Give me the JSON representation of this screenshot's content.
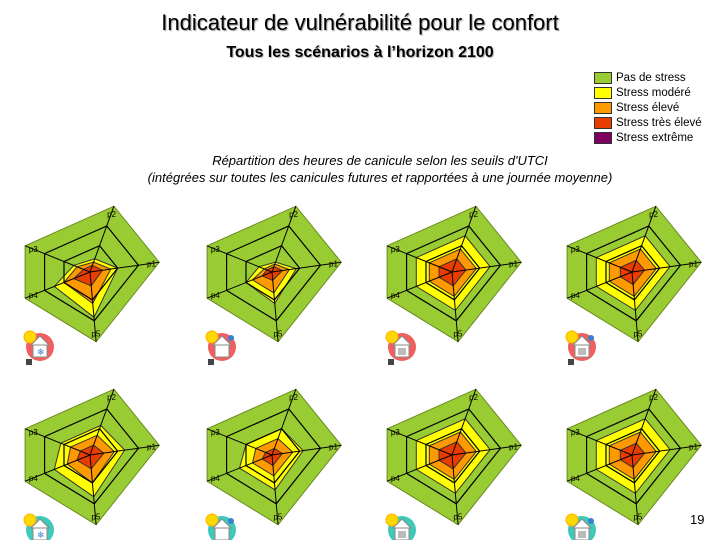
{
  "title": "Indicateur de vulnérabilité pour le confort",
  "subtitle": "Tous les scénarios à l’horizon 2100",
  "caption_line1": "Répartition des heures de canicule selon les seuils d'UTCI",
  "caption_line2": "(intégrées sur toutes les canicules futures et rapportées à une journée moyenne)",
  "page_number": "19",
  "legend": [
    {
      "label": "Pas de stress",
      "color": "#99cc33"
    },
    {
      "label": "Stress modéré",
      "color": "#ffff00"
    },
    {
      "label": "Stress élevé",
      "color": "#ff9900"
    },
    {
      "label": "Stress très élevé",
      "color": "#e83c00"
    },
    {
      "label": "Stress extrême",
      "color": "#800060"
    }
  ],
  "chart_data": {
    "type": "radar",
    "axes": [
      "p1",
      "p2",
      "p3",
      "p4",
      "p5"
    ],
    "levels": [
      "Stress extrême",
      "Stress très élevé",
      "Stress élevé",
      "Stress modéré",
      "Pas de stress"
    ],
    "panels": [
      {
        "row": 1,
        "col": 1,
        "icon": "red-cold",
        "rings": [
          {
            "level": "Stress très élevé",
            "values": [
              0.18,
              0.1,
              0.1,
              0.25,
              0.2
            ]
          },
          {
            "level": "Stress élevé",
            "values": [
              0.3,
              0.15,
              0.2,
              0.4,
              0.45
            ]
          },
          {
            "level": "Stress modéré",
            "values": [
              0.4,
              0.2,
              0.25,
              0.55,
              0.65
            ]
          }
        ]
      },
      {
        "row": 1,
        "col": 2,
        "icon": "red-hot",
        "rings": [
          {
            "level": "Stress très élevé",
            "values": [
              0.15,
              0.08,
              0.08,
              0.15,
              0.12
            ]
          },
          {
            "level": "Stress élevé",
            "values": [
              0.25,
              0.12,
              0.12,
              0.3,
              0.3
            ]
          },
          {
            "level": "Stress modéré",
            "values": [
              0.35,
              0.15,
              0.2,
              0.4,
              0.45
            ]
          }
        ]
      },
      {
        "row": 1,
        "col": 3,
        "icon": "red-gray",
        "rings": [
          {
            "level": "Stress très élevé",
            "values": [
              0.2,
              0.2,
              0.2,
              0.2,
              0.2
            ]
          },
          {
            "level": "Stress élevé",
            "values": [
              0.35,
              0.35,
              0.35,
              0.35,
              0.35
            ]
          },
          {
            "level": "Stress modéré",
            "values": [
              0.55,
              0.55,
              0.55,
              0.55,
              0.55
            ]
          }
        ]
      },
      {
        "row": 1,
        "col": 4,
        "icon": "red-gray-hot",
        "rings": [
          {
            "level": "Stress très élevé",
            "values": [
              0.18,
              0.18,
              0.18,
              0.18,
              0.18
            ]
          },
          {
            "level": "Stress élevé",
            "values": [
              0.35,
              0.35,
              0.35,
              0.35,
              0.35
            ]
          },
          {
            "level": "Stress modéré",
            "values": [
              0.55,
              0.55,
              0.55,
              0.55,
              0.55
            ]
          }
        ]
      },
      {
        "row": 2,
        "col": 1,
        "icon": "teal-cold",
        "rings": [
          {
            "level": "Stress très élevé",
            "values": [
              0.2,
              0.15,
              0.15,
              0.2,
              0.2
            ]
          },
          {
            "level": "Stress élevé",
            "values": [
              0.35,
              0.3,
              0.3,
              0.35,
              0.4
            ]
          },
          {
            "level": "Stress modéré",
            "values": [
              0.5,
              0.45,
              0.45,
              0.55,
              0.6
            ]
          }
        ]
      },
      {
        "row": 2,
        "col": 2,
        "icon": "teal-hot",
        "rings": [
          {
            "level": "Stress très élevé",
            "values": [
              0.15,
              0.1,
              0.1,
              0.15,
              0.15
            ]
          },
          {
            "level": "Stress élevé",
            "values": [
              0.3,
              0.25,
              0.25,
              0.3,
              0.3
            ]
          },
          {
            "level": "Stress modéré",
            "values": [
              0.45,
              0.4,
              0.4,
              0.5,
              0.5
            ]
          }
        ]
      },
      {
        "row": 2,
        "col": 3,
        "icon": "teal-gray",
        "rings": [
          {
            "level": "Stress très élevé",
            "values": [
              0.2,
              0.2,
              0.2,
              0.2,
              0.2
            ]
          },
          {
            "level": "Stress élevé",
            "values": [
              0.35,
              0.35,
              0.35,
              0.35,
              0.35
            ]
          },
          {
            "level": "Stress modéré",
            "values": [
              0.55,
              0.55,
              0.55,
              0.55,
              0.55
            ]
          }
        ]
      },
      {
        "row": 2,
        "col": 4,
        "icon": "teal-gray-hot",
        "rings": [
          {
            "level": "Stress très élevé",
            "values": [
              0.18,
              0.18,
              0.18,
              0.18,
              0.18
            ]
          },
          {
            "level": "Stress élevé",
            "values": [
              0.35,
              0.35,
              0.35,
              0.35,
              0.35
            ]
          },
          {
            "level": "Stress modéré",
            "values": [
              0.55,
              0.55,
              0.55,
              0.55,
              0.55
            ]
          }
        ]
      }
    ]
  }
}
